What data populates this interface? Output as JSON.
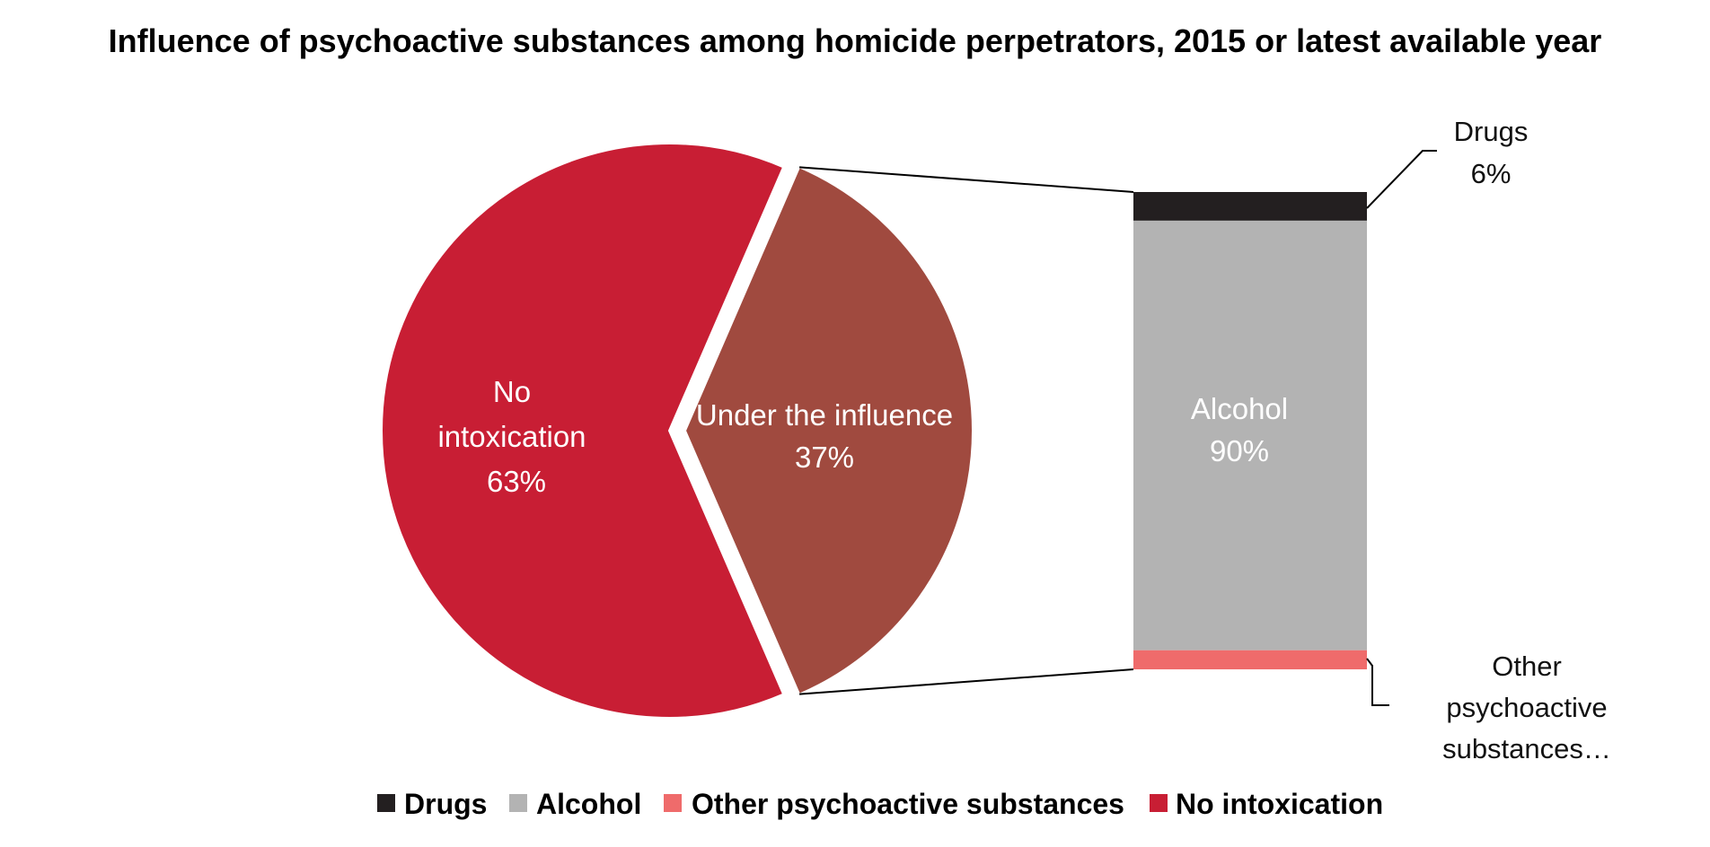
{
  "chart_data": {
    "type": "pie-of-bar",
    "title": "Influence of psychoactive substances among homicide perpetrators, 2015 or latest available year",
    "pie": {
      "slices": [
        {
          "name": "No",
          "name_line2": "intoxication",
          "value": 63,
          "label": "63%",
          "color": "#c81e34"
        },
        {
          "name": "Under the influence",
          "value": 37,
          "label": "37%",
          "color": "#a04a3f"
        }
      ]
    },
    "breakdown": {
      "of": "Under the influence",
      "segments": [
        {
          "name": "Drugs",
          "value": 6,
          "label": "6%",
          "color": "#231f20"
        },
        {
          "name": "Alcohol",
          "value": 90,
          "label": "90%",
          "color": "#b3b3b3"
        },
        {
          "name": "Other psychoactive substances",
          "value": 4,
          "label_lines": [
            "Other",
            "psychoactive",
            "substances…"
          ],
          "color": "#ef6b6b"
        }
      ]
    },
    "legend": {
      "position": "bottom",
      "items": [
        {
          "name": "Drugs",
          "color": "#231f20"
        },
        {
          "name": "Alcohol",
          "color": "#b3b3b3"
        },
        {
          "name": "Other psychoactive substances",
          "color": "#ef6b6b"
        },
        {
          "name": "No intoxication",
          "color": "#c81e34"
        }
      ]
    }
  }
}
